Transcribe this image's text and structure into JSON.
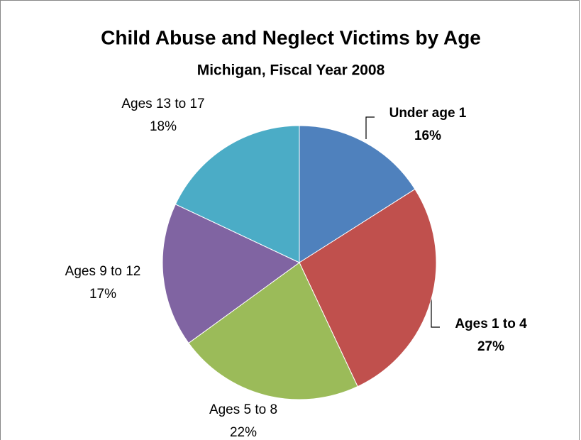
{
  "chart_data": {
    "type": "pie",
    "title": "Child Abuse and Neglect Victims by Age",
    "subtitle": "Michigan, Fiscal Year 2008",
    "categories": [
      "Under age 1",
      "Ages 1 to 4",
      "Ages 5 to 8",
      "Ages 9 to 12",
      "Ages 13 to 17"
    ],
    "values": [
      16,
      27,
      22,
      17,
      18
    ],
    "value_labels": [
      "16%",
      "27%",
      "22%",
      "17%",
      "18%"
    ],
    "colors": [
      "#4f81bd",
      "#c0504d",
      "#9bbb59",
      "#8064a2",
      "#4bacc6"
    ]
  }
}
